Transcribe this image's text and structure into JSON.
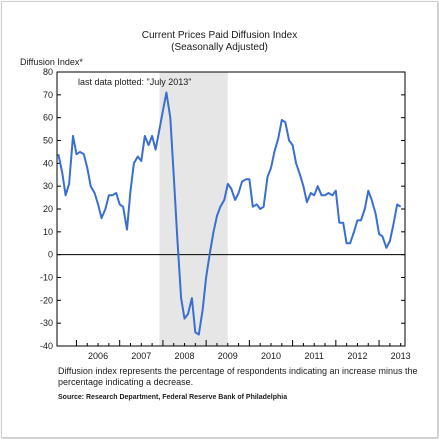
{
  "chart_data": {
    "type": "line",
    "title": "Current Prices Paid Diffusion Index",
    "subtitle": "(Seasonally Adjusted)",
    "ylabel": "Diffusion Index*",
    "xlabel": "",
    "ylim": [
      -40,
      80
    ],
    "yticks": [
      80,
      70,
      60,
      50,
      40,
      30,
      20,
      10,
      0,
      -10,
      -20,
      -30,
      -40
    ],
    "xlim": [
      2005.55,
      2013.6
    ],
    "year_labels": [
      "2006",
      "2007",
      "2008",
      "2009",
      "2010",
      "2011",
      "2012",
      "2013"
    ],
    "annotation": "last data plotted: \"July 2013\"",
    "shaded_region": [
      2007.92,
      2009.5
    ],
    "zero_line": true,
    "line_color": "#3a6fd0",
    "shade_color": "#e6e6e6",
    "series": [
      {
        "x": [
          2005.58,
          2005.67,
          2005.75,
          2005.83,
          2005.92,
          2006.0,
          2006.08,
          2006.17,
          2006.25,
          2006.33,
          2006.42,
          2006.5,
          2006.58,
          2006.67,
          2006.75,
          2006.83,
          2006.92,
          2007.0,
          2007.08,
          2007.17,
          2007.25,
          2007.33,
          2007.42,
          2007.5,
          2007.58,
          2007.67,
          2007.75,
          2007.83,
          2007.92,
          2008.0,
          2008.08,
          2008.17,
          2008.25,
          2008.33,
          2008.42,
          2008.5,
          2008.58,
          2008.67,
          2008.75,
          2008.83,
          2008.92,
          2009.0,
          2009.08,
          2009.17,
          2009.25,
          2009.33,
          2009.42,
          2009.5,
          2009.58,
          2009.67,
          2009.75,
          2009.83,
          2009.92,
          2010.0,
          2010.08,
          2010.17,
          2010.25,
          2010.33,
          2010.42,
          2010.5,
          2010.58,
          2010.67,
          2010.75,
          2010.83,
          2010.92,
          2011.0,
          2011.08,
          2011.17,
          2011.25,
          2011.33,
          2011.42,
          2011.5,
          2011.58,
          2011.67,
          2011.75,
          2011.83,
          2011.92,
          2012.0,
          2012.08,
          2012.17,
          2012.25,
          2012.33,
          2012.42,
          2012.5,
          2012.58,
          2012.67,
          2012.75,
          2012.83,
          2012.92,
          2013.0,
          2013.08,
          2013.17,
          2013.25,
          2013.33,
          2013.42,
          2013.5
        ],
        "y": [
          44,
          36,
          26,
          31,
          52,
          44,
          45,
          44,
          38,
          30,
          27,
          22,
          16,
          20,
          26,
          26,
          27,
          22,
          21,
          11,
          28,
          40,
          43,
          41,
          52,
          48,
          52,
          46,
          55,
          63,
          71,
          60,
          35,
          8,
          -19,
          -28,
          -26,
          -19,
          -34,
          -35,
          -24,
          -10,
          0,
          10,
          17,
          21,
          24,
          31,
          29,
          24,
          27,
          32,
          33,
          33,
          21,
          22,
          20,
          21,
          34,
          38,
          45,
          51,
          59,
          58,
          50,
          48,
          40,
          35,
          30,
          23,
          27,
          26,
          30,
          26,
          26,
          27,
          26,
          28,
          14,
          14,
          5,
          5,
          10,
          15,
          15,
          20,
          28,
          24,
          18,
          9,
          8,
          3,
          6,
          13,
          22,
          21
        ]
      }
    ]
  },
  "note": "Diffusion index represents the percentage of respondents indicating an increase minus the percentage indicating a decrease.",
  "source": "Source: Research Department, Federal Reserve Bank of Philadelphia"
}
